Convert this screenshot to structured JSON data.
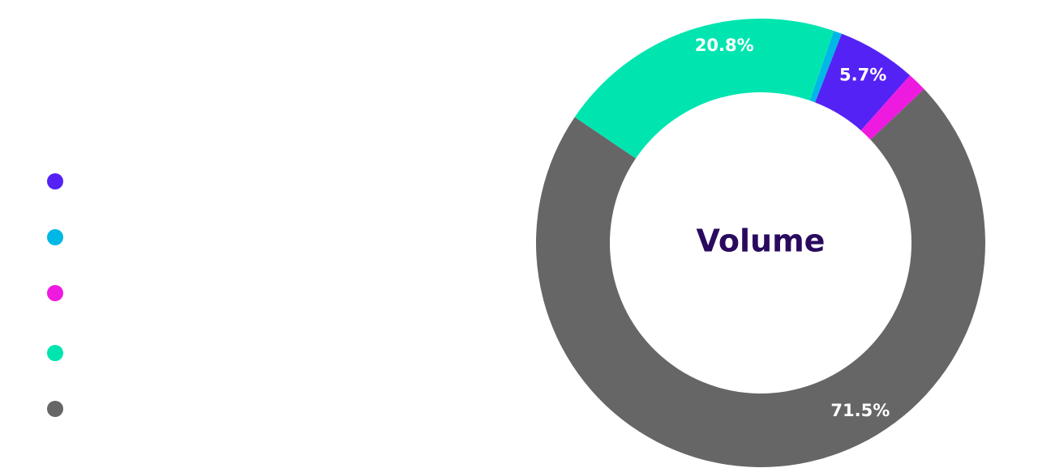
{
  "chart_data": {
    "type": "pie",
    "donut": true,
    "title": "Volume",
    "title_color": "#2a0a5e",
    "slices": [
      {
        "value": 0.6,
        "color": "#00b8e6",
        "label": ""
      },
      {
        "value": 5.7,
        "color": "#5522f5",
        "label": "5.7%"
      },
      {
        "value": 1.4,
        "color": "#ee1ae0",
        "label": ""
      },
      {
        "value": 71.5,
        "color": "#666666",
        "label": "71.5%"
      },
      {
        "value": 20.8,
        "color": "#00e5b0",
        "label": "20.8%"
      }
    ],
    "legend": {
      "position": "left",
      "markers": [
        {
          "color": "#5522f5"
        },
        {
          "color": "#00b8e6"
        },
        {
          "color": "#ee1ae0"
        },
        {
          "color": "#00e5b0"
        },
        {
          "color": "#666666"
        }
      ]
    }
  }
}
